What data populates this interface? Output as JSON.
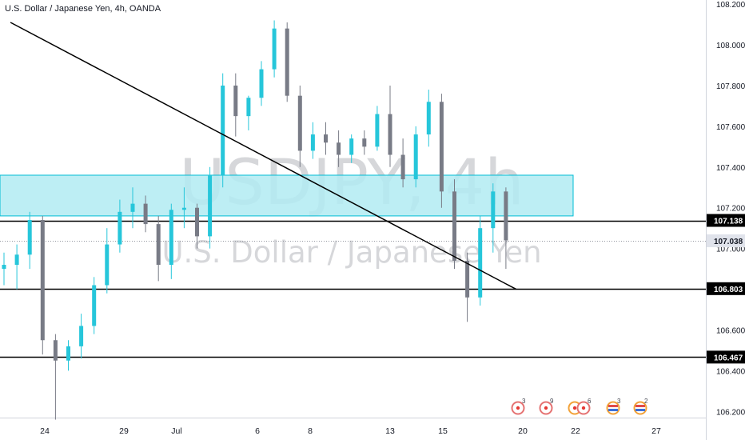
{
  "header": {
    "title": "U.S. Dollar / Japanese Yen, 4h, OANDA"
  },
  "watermark": {
    "symbol": "USDJPY, 4h",
    "name": "U.S. Dollar / Japanese Yen"
  },
  "colors": {
    "up": "#26c6da",
    "down": "#787b86",
    "zone_fill": "#b2ebf2",
    "zone_border": "#00bcd4",
    "line": "#000000",
    "watermark": "#787b86"
  },
  "chart_data": {
    "type": "candlestick",
    "ylim": [
      106.17,
      108.22
    ],
    "y_ticks": [
      "108.200",
      "108.000",
      "107.800",
      "107.600",
      "107.400",
      "107.200",
      "107.000",
      "106.800",
      "106.600",
      "106.400",
      "106.200"
    ],
    "x_ticks": [
      "24",
      "29",
      "Jul",
      "6",
      "8",
      "13",
      "15",
      "20",
      "22",
      "27"
    ],
    "levels": [
      {
        "label": "107.138",
        "value": 107.138,
        "kind": "line"
      },
      {
        "label": "107.038",
        "value": 107.038,
        "kind": "current"
      },
      {
        "label": "106.803",
        "value": 106.803,
        "kind": "line"
      },
      {
        "label": "106.467",
        "value": 106.467,
        "kind": "line"
      }
    ],
    "zone": {
      "top": 107.36,
      "bottom": 107.16
    },
    "trendline": {
      "start": [
        0.5,
        108.11
      ],
      "end": [
        39.8,
        106.8
      ]
    },
    "events": [
      {
        "count": "3",
        "kind": "red"
      },
      {
        "count": "9",
        "kind": "red"
      },
      {
        "count": "6",
        "kind": "mixed"
      },
      {
        "count": "3",
        "kind": "flag"
      },
      {
        "count": "2",
        "kind": "flag"
      }
    ],
    "candles": [
      [
        106.9,
        106.98,
        106.82,
        106.92
      ],
      [
        106.92,
        107.02,
        106.8,
        106.97
      ],
      [
        106.97,
        107.18,
        106.9,
        107.14
      ],
      [
        107.14,
        107.16,
        106.48,
        106.55
      ],
      [
        106.55,
        106.58,
        106.16,
        106.45
      ],
      [
        106.45,
        106.55,
        106.4,
        106.52
      ],
      [
        106.52,
        106.68,
        106.46,
        106.62
      ],
      [
        106.62,
        106.86,
        106.58,
        106.82
      ],
      [
        106.82,
        107.1,
        106.78,
        107.02
      ],
      [
        107.02,
        107.24,
        106.98,
        107.18
      ],
      [
        107.18,
        107.3,
        107.1,
        107.22
      ],
      [
        107.22,
        107.26,
        107.08,
        107.12
      ],
      [
        107.12,
        107.16,
        106.84,
        106.92
      ],
      [
        106.92,
        107.22,
        106.85,
        107.19
      ],
      [
        107.19,
        107.3,
        107.1,
        107.2
      ],
      [
        107.2,
        107.22,
        107.0,
        107.06
      ],
      [
        107.06,
        107.4,
        107.0,
        107.36
      ],
      [
        107.36,
        107.86,
        107.3,
        107.8
      ],
      [
        107.8,
        107.86,
        107.55,
        107.65
      ],
      [
        107.65,
        107.75,
        107.58,
        107.74
      ],
      [
        107.74,
        107.92,
        107.7,
        107.88
      ],
      [
        107.88,
        108.12,
        107.84,
        108.08
      ],
      [
        108.08,
        108.11,
        107.72,
        107.75
      ],
      [
        107.75,
        107.8,
        107.4,
        107.48
      ],
      [
        107.48,
        107.62,
        107.44,
        107.56
      ],
      [
        107.56,
        107.62,
        107.46,
        107.52
      ],
      [
        107.52,
        107.58,
        107.4,
        107.46
      ],
      [
        107.46,
        107.56,
        107.42,
        107.54
      ],
      [
        107.54,
        107.58,
        107.46,
        107.5
      ],
      [
        107.5,
        107.7,
        107.48,
        107.66
      ],
      [
        107.66,
        107.8,
        107.4,
        107.46
      ],
      [
        107.46,
        107.54,
        107.3,
        107.34
      ],
      [
        107.34,
        107.6,
        107.3,
        107.56
      ],
      [
        107.56,
        107.78,
        107.5,
        107.72
      ],
      [
        107.72,
        107.76,
        107.2,
        107.28
      ],
      [
        107.28,
        107.34,
        106.9,
        106.94
      ],
      [
        106.94,
        106.98,
        106.64,
        106.76
      ],
      [
        106.76,
        107.16,
        106.72,
        107.1
      ],
      [
        107.1,
        107.32,
        106.98,
        107.28
      ],
      [
        107.28,
        107.3,
        106.9,
        107.04
      ]
    ]
  }
}
